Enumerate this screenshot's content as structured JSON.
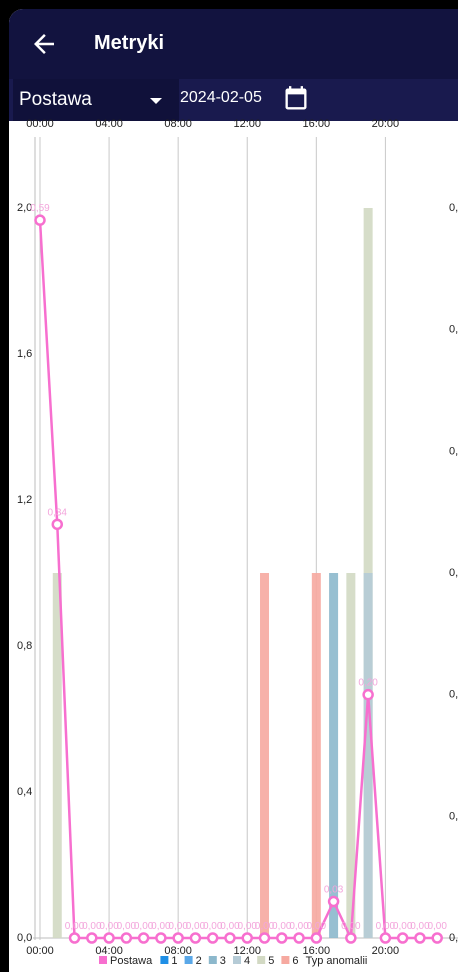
{
  "app": {
    "title": "Metryki",
    "metric_select": "Postawa",
    "date": "2024-02-05",
    "icons": {
      "back": "arrow-left-icon",
      "calendar": "calendar-icon"
    },
    "colors": {
      "appbar": "#12133f",
      "filterbar": "#191a4e"
    }
  },
  "chart_data": {
    "type": "bar+line",
    "x_ticks": [
      "00:00",
      "04:00",
      "08:00",
      "12:00",
      "16:00",
      "20:00"
    ],
    "y_left_ticks": [
      "2,0",
      "1,6",
      "1,2",
      "0,8",
      "0,4",
      "0,0"
    ],
    "y_right_ticks": [
      "0,",
      "0,",
      "0,",
      "0,",
      "0,",
      "0,",
      "0,"
    ],
    "y_left_range": [
      0,
      2.0
    ],
    "y_right_range": [
      0,
      0.6
    ],
    "grid": true,
    "legend_position": "bottom",
    "legend": [
      {
        "label": "Postawa",
        "color": "#f76fcf"
      },
      {
        "label": "1",
        "color": "#1f8fe6"
      },
      {
        "label": "2",
        "color": "#5aa8e8"
      },
      {
        "label": "3",
        "color": "#8cb8cc"
      },
      {
        "label": "4",
        "color": "#b5cbd6"
      },
      {
        "label": "5",
        "color": "#d2d9c3"
      },
      {
        "label": "6",
        "color": "#f6a9a0"
      },
      {
        "label": "Typ anomalii",
        "color": ""
      }
    ],
    "bars": [
      {
        "hour": 1,
        "type": "5",
        "value": 1.0
      },
      {
        "hour": 13,
        "type": "6",
        "value": 1.0
      },
      {
        "hour": 16,
        "type": "6",
        "value": 1.0
      },
      {
        "hour": 17,
        "type": "3",
        "value": 1.0
      },
      {
        "hour": 18,
        "type": "5",
        "value": 1.0
      },
      {
        "hour": 19,
        "type": "5",
        "value": 2.0
      },
      {
        "hour": 19,
        "type": "4",
        "value": 1.0
      }
    ],
    "line": {
      "name": "Postawa",
      "color": "#f76fcf",
      "x": [
        0,
        1,
        2,
        3,
        4,
        5,
        6,
        7,
        8,
        9,
        10,
        11,
        12,
        13,
        14,
        15,
        16,
        17,
        18,
        19,
        20,
        21,
        22,
        23
      ],
      "y": [
        0.59,
        0.34,
        0.0,
        0.0,
        0.0,
        0.0,
        0.0,
        0.0,
        0.0,
        0.0,
        0.0,
        0.0,
        0.0,
        0.0,
        0.0,
        0.0,
        0.0,
        0.03,
        0.0,
        0.2,
        0.0,
        0.0,
        0.0,
        0.0
      ],
      "labels": [
        "0,59",
        "0,34",
        "0,00",
        "0,00",
        "0,00",
        "0,00",
        "0,00",
        "0,00",
        "0,00",
        "0,00",
        "0,00",
        "0,00",
        "0,00",
        "0,00",
        "0,00",
        "0,00",
        "0,00",
        "0,03",
        "0,00",
        "0,20",
        "0,00",
        "0,00",
        "0,00",
        "0,00"
      ]
    }
  }
}
